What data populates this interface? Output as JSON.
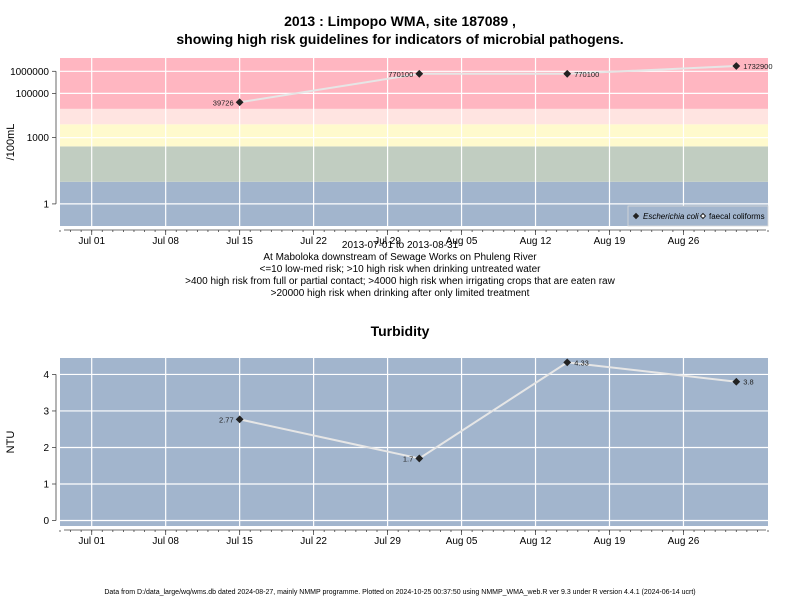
{
  "chart_data": [
    {
      "type": "line",
      "title": "2013 : Limpopo WMA, site 187089 ,",
      "subtitle": "showing high risk guidelines for indicators of microbial pathogens.",
      "ylabel": "/100mL",
      "yscale": "log",
      "ytick_labels": [
        "1",
        "1000",
        "100000",
        "1000000"
      ],
      "ytick_values": [
        1,
        1000,
        100000,
        1000000
      ],
      "xtick_labels": [
        "Jul 01",
        "Jul 08",
        "Jul 15",
        "Jul 22",
        "Jul 29",
        "Aug 05",
        "Aug 12",
        "Aug 19",
        "Aug 26"
      ],
      "xtick_dates": [
        "2013-07-01",
        "2013-07-08",
        "2013-07-15",
        "2013-07-22",
        "2013-07-29",
        "2013-08-05",
        "2013-08-12",
        "2013-08-19",
        "2013-08-26"
      ],
      "xrange": [
        "2013-06-28",
        "2013-09-03"
      ],
      "risk_bands": [
        {
          "from": 0.1,
          "to": 10,
          "color": "#a2b5cd"
        },
        {
          "from": 10,
          "to": 400,
          "color": "#c1cdc1"
        },
        {
          "from": 400,
          "to": 4000,
          "color": "#fffacd"
        },
        {
          "from": 4000,
          "to": 20000,
          "color": "#ffe4e1"
        },
        {
          "from": 20000,
          "to": 4000000,
          "color": "#ffb6c1"
        }
      ],
      "series": [
        {
          "name": "Escherichia coli",
          "marker": "filled-diamond",
          "color": "#222222",
          "points": [
            {
              "x": "2013-07-15",
              "y": 39726,
              "label": "39726"
            },
            {
              "x": "2013-08-01",
              "y": 770100,
              "label": "770100"
            },
            {
              "x": "2013-08-15",
              "y": 770100,
              "label": "770100"
            },
            {
              "x": "2013-08-31",
              "y": 1732900,
              "label": "1732900"
            }
          ]
        },
        {
          "name": "faecal coliforms",
          "marker": "open-diamond",
          "color": "#222222",
          "points": []
        }
      ],
      "legend": "bottom-right",
      "caption": [
        "2013-07-01 to 2013-08-31",
        "At Maboloka downstream of Sewage Works on Phuleng River",
        "<=10 low-med risk; >10 high risk when drinking untreated water",
        ">400 high risk from full or partial contact; >4000 high risk when irrigating crops that are eaten raw",
        ">20000 high risk when drinking after only limited treatment"
      ]
    },
    {
      "type": "line",
      "title": "Turbidity",
      "ylabel": "NTU",
      "ylim": [
        -0.15,
        4.45
      ],
      "ytick_labels": [
        "0",
        "1",
        "2",
        "3",
        "4"
      ],
      "ytick_values": [
        0,
        1,
        2,
        3,
        4
      ],
      "xtick_labels": [
        "Jul 01",
        "Jul 08",
        "Jul 15",
        "Jul 22",
        "Jul 29",
        "Aug 05",
        "Aug 12",
        "Aug 19",
        "Aug 26"
      ],
      "xtick_dates": [
        "2013-07-01",
        "2013-07-08",
        "2013-07-15",
        "2013-07-22",
        "2013-07-29",
        "2013-08-05",
        "2013-08-12",
        "2013-08-19",
        "2013-08-26"
      ],
      "xrange": [
        "2013-06-28",
        "2013-09-03"
      ],
      "background": "#a2b5cd",
      "series": [
        {
          "marker": "filled-diamond",
          "color": "#222222",
          "points": [
            {
              "x": "2013-07-15",
              "y": 2.77,
              "label": "2.77"
            },
            {
              "x": "2013-08-01",
              "y": 1.7,
              "label": "1.7"
            },
            {
              "x": "2013-08-15",
              "y": 4.33,
              "label": "4.33"
            },
            {
              "x": "2013-08-31",
              "y": 3.8,
              "label": "3.8"
            }
          ]
        }
      ]
    }
  ],
  "footer": "Data from D:/data_large/wq/wms.db dated 2024-08-27, mainly NMMP programme. Plotted on 2024-10-25 00:37:50 using NMMP_WMA_web.R ver 9.3 under R version 4.4.1 (2024-06-14 ucrt)"
}
